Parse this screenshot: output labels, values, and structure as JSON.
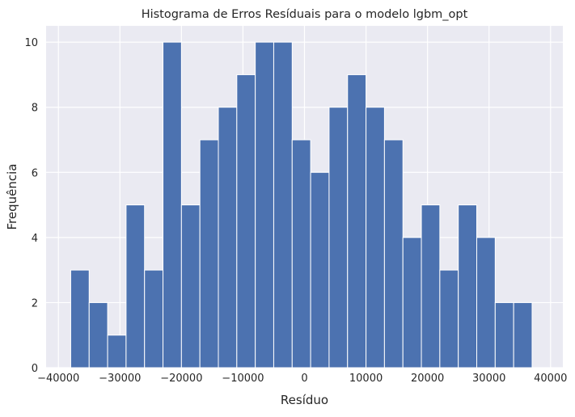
{
  "chart_data": {
    "type": "bar",
    "title": "Histograma de Erros Resíduais para o modelo lgbm_opt",
    "xlabel": "Resíduo",
    "ylabel": "Frequência",
    "xlim": [
      -42000,
      42000
    ],
    "ylim": [
      0,
      10.5
    ],
    "xticks": [
      -40000,
      -30000,
      -20000,
      -10000,
      0,
      10000,
      20000,
      30000,
      40000
    ],
    "xtick_labels": [
      "−40000",
      "−30000",
      "−20000",
      "−10000",
      "0",
      "10000",
      "20000",
      "30000",
      "40000"
    ],
    "yticks": [
      0,
      2,
      4,
      6,
      8,
      10
    ],
    "ytick_labels": [
      "0",
      "2",
      "4",
      "6",
      "8",
      "10"
    ],
    "grid": true,
    "background_color": "#eaeaf2",
    "bar_color": "#4c72b0",
    "bin_start": -38000,
    "bin_width": 3000,
    "values": [
      3,
      2,
      1,
      5,
      3,
      10,
      5,
      7,
      8,
      9,
      10,
      10,
      7,
      6,
      8,
      9,
      8,
      7,
      4,
      5,
      3,
      5,
      4,
      2,
      2
    ]
  }
}
